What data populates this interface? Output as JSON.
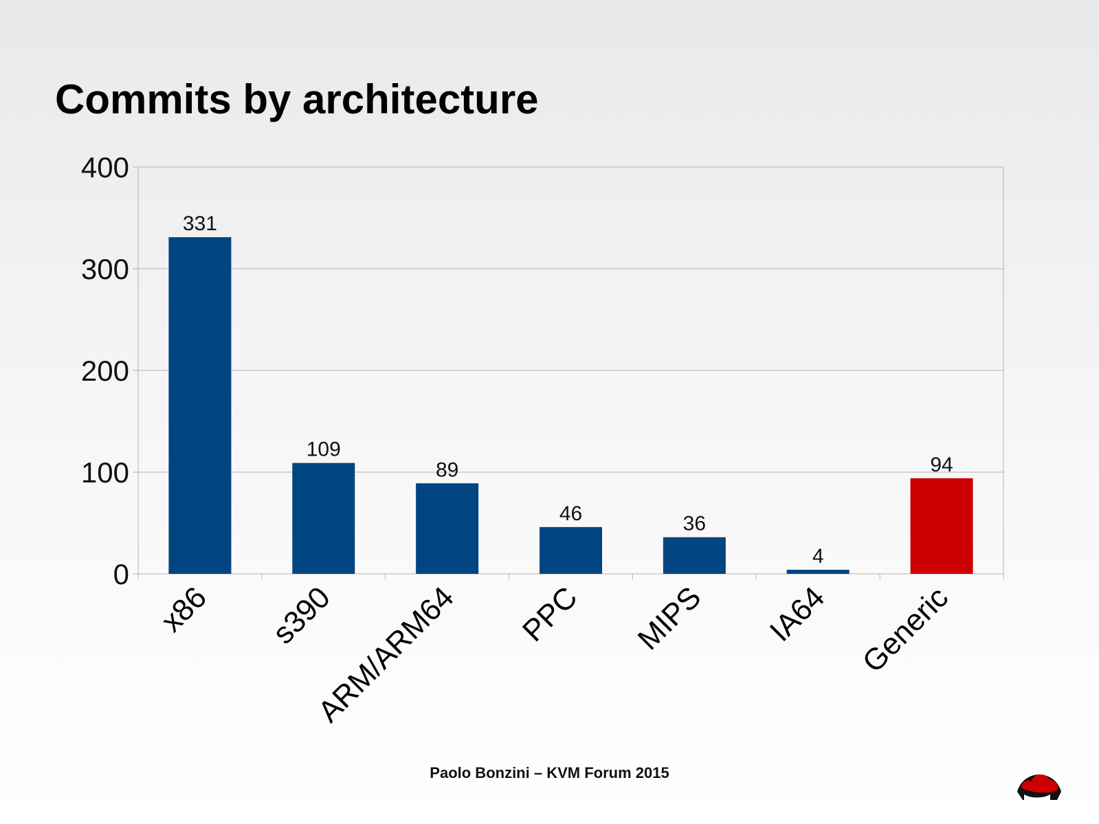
{
  "slide": {
    "footer": "Paolo Bonzini – KVM Forum 2015"
  },
  "chart_data": {
    "type": "bar",
    "title": "Commits by architecture",
    "xlabel": "",
    "ylabel": "",
    "categories": [
      "x86",
      "s390",
      "ARM/ARM64",
      "PPC",
      "MIPS",
      "IA64",
      "Generic"
    ],
    "values": [
      331,
      109,
      89,
      46,
      36,
      4,
      94
    ],
    "colors": [
      "#00457f",
      "#00457f",
      "#00457f",
      "#00457f",
      "#00457f",
      "#00457f",
      "#cc0000"
    ],
    "ylim": [
      0,
      400
    ],
    "yticks": [
      0,
      100,
      200,
      300,
      400
    ],
    "grid": true,
    "legend": "none"
  }
}
